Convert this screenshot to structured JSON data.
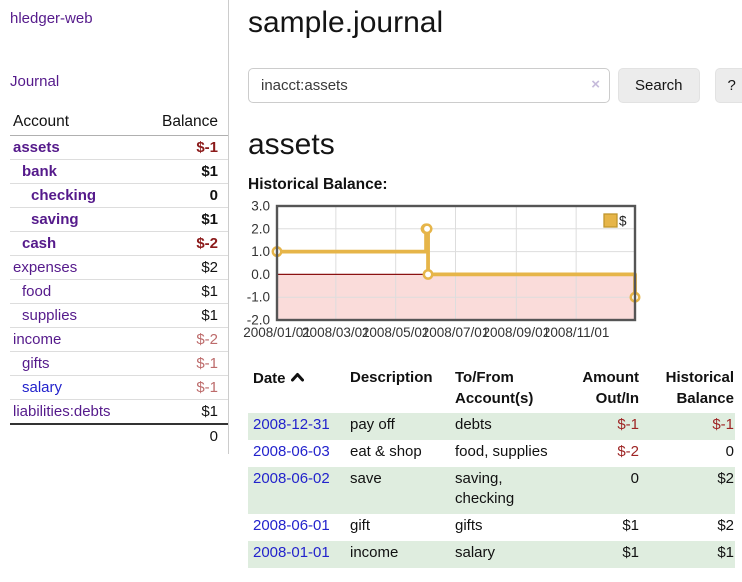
{
  "colors": {
    "link_purple": "#551a8b",
    "link_blue": "#2323cc",
    "text": "#111111",
    "negative_strong": "#8b1a1a",
    "negative_table": "#9e2424",
    "negative_muted": "#bd6b6b",
    "row_green": "#dfeddf",
    "button_bg": "#ececec",
    "chart_line": "#e6b549",
    "chart_line_edge": "#c0962c",
    "chart_negative_fill": "#fadcda",
    "chart_zero_line": "#8b1212",
    "chart_grid": "#dddddd",
    "chart_border": "#555555"
  },
  "icons": {
    "clear_search": "×",
    "sort_ascending": "chevron-up"
  },
  "sidebar": {
    "app_title": "hledger-web",
    "journal_link": "Journal",
    "accounts_table": {
      "account_header": "Account",
      "balance_header": "Balance",
      "rows": [
        {
          "name": "assets",
          "balance": "$-1",
          "indent": 1,
          "bold": true,
          "name_color": "link_purple",
          "balance_color": "negative_strong"
        },
        {
          "name": "bank",
          "balance": "$1",
          "indent": 2,
          "bold": true,
          "name_color": "link_purple",
          "balance_color": "text"
        },
        {
          "name": "checking",
          "balance": "0",
          "indent": 3,
          "bold": true,
          "name_color": "link_purple",
          "balance_color": "text"
        },
        {
          "name": "saving",
          "balance": "$1",
          "indent": 3,
          "bold": true,
          "name_color": "link_purple",
          "balance_color": "text"
        },
        {
          "name": "cash",
          "balance": "$-2",
          "indent": 2,
          "bold": true,
          "name_color": "link_purple",
          "balance_color": "negative_strong"
        },
        {
          "name": "expenses",
          "balance": "$2",
          "indent": 1,
          "bold": false,
          "name_color": "link_purple",
          "balance_color": "text"
        },
        {
          "name": "food",
          "balance": "$1",
          "indent": 2,
          "bold": false,
          "name_color": "link_purple",
          "balance_color": "text"
        },
        {
          "name": "supplies",
          "balance": "$1",
          "indent": 2,
          "bold": false,
          "name_color": "link_purple",
          "balance_color": "text"
        },
        {
          "name": "income",
          "balance": "$-2",
          "indent": 1,
          "bold": false,
          "name_color": "link_purple",
          "balance_color": "negative_muted"
        },
        {
          "name": "gifts",
          "balance": "$-1",
          "indent": 2,
          "bold": false,
          "name_color": "link_purple",
          "balance_color": "negative_muted"
        },
        {
          "name": "salary",
          "balance": "$-1",
          "indent": 2,
          "bold": false,
          "name_color": "link_blue",
          "balance_color": "negative_muted"
        },
        {
          "name": "liabilities:debts",
          "balance": "$1",
          "indent": 1,
          "bold": false,
          "name_color": "link_purple",
          "balance_color": "text"
        }
      ],
      "total_balance": "0"
    }
  },
  "main": {
    "title": "sample.journal",
    "search": {
      "value": "inacct:assets",
      "button_label": "Search",
      "help_label": "?"
    },
    "account_heading": "assets",
    "chart_label": "Historical Balance:",
    "register_table": {
      "headers": {
        "date": "Date",
        "description": "Description",
        "accounts": "To/From Account(s)",
        "amount": "Amount Out/In",
        "balance": "Historical Balance"
      },
      "rows": [
        {
          "date": "2008-12-31",
          "description": "pay off",
          "accounts": [
            "debts"
          ],
          "amount": "$-1",
          "amount_negative": true,
          "balance": "$-1",
          "balance_negative": true
        },
        {
          "date": "2008-06-03",
          "description": "eat & shop",
          "accounts": [
            "food, supplies"
          ],
          "amount": "$-2",
          "amount_negative": true,
          "balance": "0",
          "balance_negative": false
        },
        {
          "date": "2008-06-02",
          "description": "save",
          "accounts": [
            "saving,",
            "checking"
          ],
          "amount": "0",
          "amount_negative": false,
          "balance": "$2",
          "balance_negative": false
        },
        {
          "date": "2008-06-01",
          "description": "gift",
          "accounts": [
            "gifts"
          ],
          "amount": "$1",
          "amount_negative": false,
          "balance": "$2",
          "balance_negative": false
        },
        {
          "date": "2008-01-01",
          "description": "income",
          "accounts": [
            "salary"
          ],
          "amount": "$1",
          "amount_negative": false,
          "balance": "$1",
          "balance_negative": false
        }
      ]
    }
  },
  "chart_data": {
    "type": "line",
    "title": "Historical Balance:",
    "step": true,
    "series": [
      {
        "name": "$",
        "color": "#e6b549",
        "points": [
          {
            "date": "2008-01-01",
            "value": 1.0
          },
          {
            "date": "2008-06-01",
            "value": 2.0
          },
          {
            "date": "2008-06-02",
            "value": 2.0
          },
          {
            "date": "2008-06-03",
            "value": 0.0
          },
          {
            "date": "2008-12-31",
            "value": -1.0
          }
        ]
      }
    ],
    "x_range": [
      "2008-01-01",
      "2008-12-31"
    ],
    "x_tick_dates": [
      "2008-01-01",
      "2008-03-01",
      "2008-05-01",
      "2008-07-01",
      "2008-09-01",
      "2008-11-01"
    ],
    "x_tick_labels": [
      "2008/01/01",
      "2008/03/01",
      "2008/05/01",
      "2008/07/01",
      "2008/09/01",
      "2008/11/01"
    ],
    "y_ticks": [
      3.0,
      2.0,
      1.0,
      0.0,
      -1.0,
      -2.0
    ],
    "ylim": [
      -2.0,
      3.0
    ],
    "grid": true,
    "legend": {
      "label": "$",
      "position": "top-right"
    }
  }
}
